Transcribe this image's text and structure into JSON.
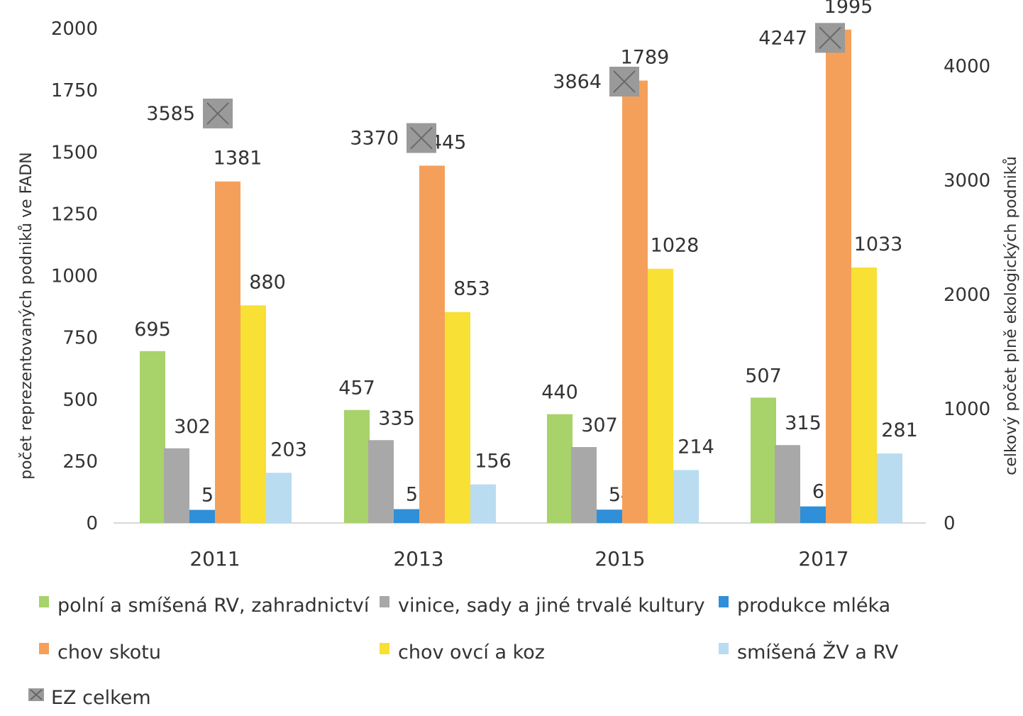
{
  "colors": {
    "polni": "#a8d26a",
    "vinice": "#a8a8a8",
    "mleko": "#2f8fd8",
    "skot": "#f5a05a",
    "ovce": "#f8e034",
    "smisena": "#b9dcf0",
    "ez": "#9a9a9a"
  },
  "chart_data": {
    "type": "bar",
    "categories": [
      "2011",
      "2013",
      "2015",
      "2017"
    ],
    "series": [
      {
        "key": "polni",
        "name": "polní a smíšená RV, zahradnictví",
        "values": [
          695,
          457,
          440,
          507
        ]
      },
      {
        "key": "vinice",
        "name": "vinice, sady a jiné trvalé kultury",
        "values": [
          302,
          335,
          307,
          315
        ]
      },
      {
        "key": "mleko",
        "name": "produkce mléka",
        "values": [
          53,
          56,
          54,
          67
        ]
      },
      {
        "key": "skot",
        "name": "chov skotu",
        "values": [
          1381,
          1445,
          1789,
          1995
        ]
      },
      {
        "key": "ovce",
        "name": "chov ovcí a koz",
        "values": [
          880,
          853,
          1028,
          1033
        ]
      },
      {
        "key": "smisena",
        "name": "smíšená ŽV a RV",
        "values": [
          203,
          156,
          214,
          281
        ]
      }
    ],
    "secondary_series": {
      "key": "ez",
      "name": "EZ celkem",
      "type": "scatter",
      "values": [
        3585,
        3370,
        3864,
        4247
      ]
    },
    "ylabel": "počet reprezentovaných podniků ve FADN",
    "y2label": "celkový počet plně ekologických podniků",
    "ylim": [
      0,
      2000
    ],
    "yticks": [
      "0",
      "250",
      "500",
      "750",
      "1000",
      "1250",
      "1500",
      "1750",
      "2000"
    ],
    "y2lim": [
      0,
      4330
    ],
    "y2ticks": [
      "0",
      "1000",
      "2000",
      "3000",
      "4000"
    ],
    "legend_position": "bottom"
  }
}
